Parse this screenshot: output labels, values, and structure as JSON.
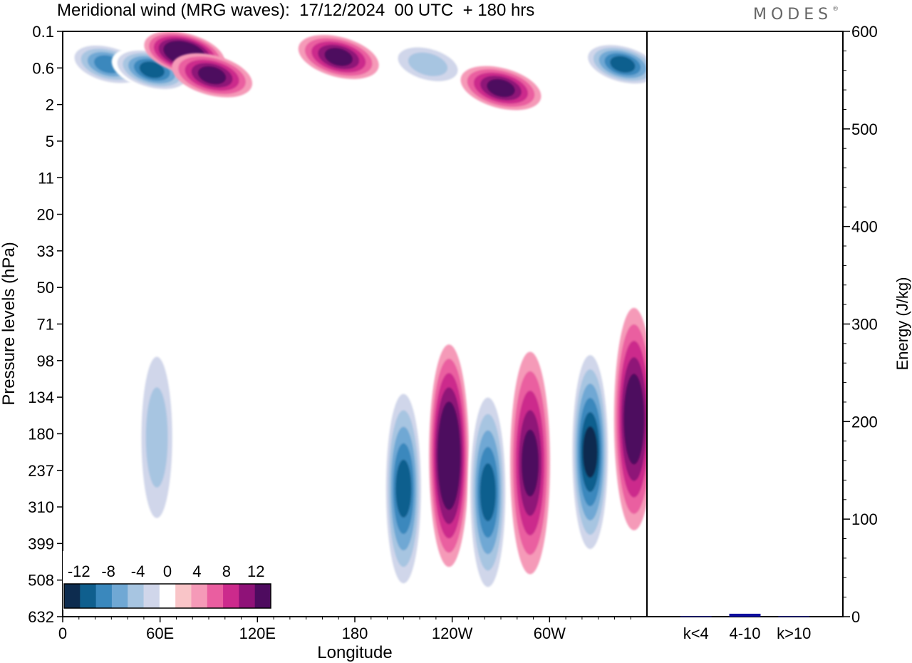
{
  "title": "Meridional wind (MRG waves):  17/12/2024  00 UTC  + 180 hrs",
  "brand": "MODES",
  "brand_mark": "®",
  "chart_data": [
    {
      "type": "heatmap",
      "xlabel": "Longitude",
      "ylabel": "Pressure levels (hPa)",
      "x_ticks": [
        "0",
        "60E",
        "120E",
        "180",
        "120W",
        "60W"
      ],
      "x_tick_positions_deg": [
        0,
        60,
        120,
        180,
        240,
        300
      ],
      "xlim": [
        0,
        360
      ],
      "y_ticks": [
        "0.1",
        "0.6",
        "2",
        "5",
        "11",
        "20",
        "33",
        "50",
        "71",
        "98",
        "134",
        "180",
        "237",
        "310",
        "399",
        "508",
        "632"
      ],
      "colorbar": {
        "labels": [
          "-12",
          "-8",
          "-4",
          "0",
          "4",
          "8",
          "12"
        ],
        "levels": [
          -14,
          -12,
          -10,
          -8,
          -6,
          -4,
          -2,
          2,
          4,
          6,
          8,
          10,
          12,
          14
        ],
        "colors": [
          "#0d2c4f",
          "#0f5f8e",
          "#3a88bd",
          "#70a8d4",
          "#a7c5e1",
          "#d0d6ea",
          "#ffffff",
          "#f9c5c8",
          "#f59ab8",
          "#ea5ea0",
          "#cc2a8c",
          "#8f1278",
          "#4e0b5f"
        ]
      },
      "features": [
        {
          "lon": 28,
          "level_index": 0.9,
          "value": -9
        },
        {
          "lon": 55,
          "level_index": 1.05,
          "value": -11
        },
        {
          "lon": 75,
          "level_index": 0.6,
          "value": 13
        },
        {
          "lon": 92,
          "level_index": 1.2,
          "value": 9
        },
        {
          "lon": 170,
          "level_index": 0.7,
          "value": 9
        },
        {
          "lon": 225,
          "level_index": 0.9,
          "value": -6
        },
        {
          "lon": 270,
          "level_index": 1.55,
          "value": 10
        },
        {
          "lon": 345,
          "level_index": 0.9,
          "value": -12
        },
        {
          "lon": 58,
          "level_index": 11.1,
          "value": -6
        },
        {
          "lon": 210,
          "level_index": 12.5,
          "value": -11
        },
        {
          "lon": 238,
          "level_index": 11.6,
          "value": 13
        },
        {
          "lon": 262,
          "level_index": 12.6,
          "value": -12
        },
        {
          "lon": 288,
          "level_index": 11.8,
          "value": 9
        },
        {
          "lon": 325,
          "level_index": 11.5,
          "value": -13
        },
        {
          "lon": 352,
          "level_index": 10.6,
          "value": 11
        }
      ]
    },
    {
      "type": "bar",
      "ylabel": "Energy (J/kg)",
      "categories": [
        "k<4",
        "4-10",
        "k>10"
      ],
      "values": [
        0.5,
        3,
        0.5
      ],
      "ylim": [
        0,
        600
      ],
      "y_ticks": [
        "0",
        "100",
        "200",
        "300",
        "400",
        "500",
        "600"
      ],
      "bar_color": "#1010a0"
    }
  ]
}
